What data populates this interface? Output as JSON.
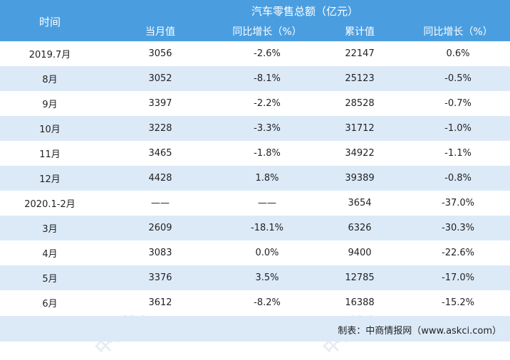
{
  "title": "汽车零售总额（亿元）",
  "headers": {
    "time": "时间",
    "month_value": "当月值",
    "yoy1": "同比增长（%）",
    "cumulative": "累计值",
    "yoy2": "同比增长（%）"
  },
  "rows": [
    {
      "time": "2019.7月",
      "month": "3056",
      "yoy": "-2.6%",
      "cum": "22147",
      "cum_yoy": "0.6%"
    },
    {
      "time": "8月",
      "month": "3052",
      "yoy": "-8.1%",
      "cum": "25123",
      "cum_yoy": "-0.5%"
    },
    {
      "time": "9月",
      "month": "3397",
      "yoy": "-2.2%",
      "cum": "28528",
      "cum_yoy": "-0.7%"
    },
    {
      "time": "10月",
      "month": "3228",
      "yoy": "-3.3%",
      "cum": "31712",
      "cum_yoy": "-1.0%"
    },
    {
      "time": "11月",
      "month": "3465",
      "yoy": "-1.8%",
      "cum": "34922",
      "cum_yoy": "-1.1%"
    },
    {
      "time": "12月",
      "month": "4428",
      "yoy": "1.8%",
      "cum": "39389",
      "cum_yoy": "-0.8%"
    },
    {
      "time": "2020.1-2月",
      "month": "——",
      "yoy": "——",
      "cum": "3654",
      "cum_yoy": "-37.0%"
    },
    {
      "time": "3月",
      "month": "2609",
      "yoy": "-18.1%",
      "cum": "6326",
      "cum_yoy": "-30.3%"
    },
    {
      "time": "4月",
      "month": "3083",
      "yoy": "0.0%",
      "cum": "9400",
      "cum_yoy": "-22.6%"
    },
    {
      "time": "5月",
      "month": "3376",
      "yoy": "3.5%",
      "cum": "12785",
      "cum_yoy": "-17.0%"
    },
    {
      "time": "6月",
      "month": "3612",
      "yoy": "-8.2%",
      "cum": "16388",
      "cum_yoy": "-15.2%"
    }
  ],
  "footer": "制表：中商情报网（www.askci.com）",
  "watermark": "中商产业研究院",
  "colors": {
    "header_bg": "#4a9ee0",
    "alt_row_bg": "#dceaf8"
  }
}
